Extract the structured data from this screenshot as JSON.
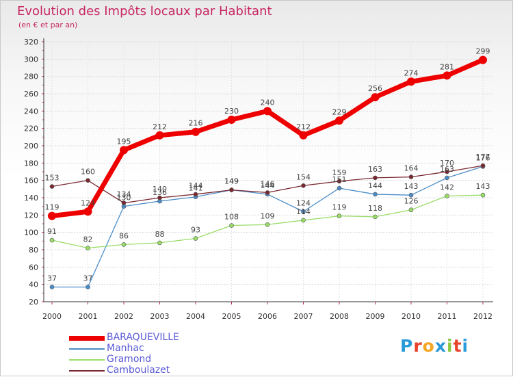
{
  "title": "Evolution des Impôts locaux par Habitant",
  "subtitle": "(en € et par an)",
  "logo": {
    "letters": [
      "P",
      "r",
      "o",
      "x",
      "i",
      "t",
      "i"
    ],
    "colors": [
      "#2a9ad8",
      "#e8432b",
      "#f5a623",
      "#2a9ad8",
      "#8cc63f",
      "#e8432b",
      "#2a9ad8"
    ]
  },
  "chart_data": {
    "type": "line",
    "title": "Evolution des Impôts locaux par Habitant",
    "subtitle": "(en € et par an)",
    "categories": [
      "2000",
      "2001",
      "2002",
      "2003",
      "2004",
      "2005",
      "2006",
      "2007",
      "2008",
      "2009",
      "2010",
      "2011",
      "2012"
    ],
    "ylim": [
      20,
      320
    ],
    "yticks": [
      20,
      40,
      60,
      80,
      100,
      120,
      140,
      160,
      180,
      200,
      220,
      240,
      260,
      280,
      300,
      320
    ],
    "grid": true,
    "legend_position": "bottom-left",
    "series": [
      {
        "name": "BARAQUEVILLE",
        "color": "#ee0000",
        "width": 7,
        "values": [
          119,
          124,
          195,
          212,
          216,
          230,
          240,
          212,
          229,
          256,
          274,
          281,
          299
        ]
      },
      {
        "name": "Manhac",
        "color": "#4a8cc8",
        "width": 1.3,
        "values": [
          37,
          37,
          130,
          136,
          141,
          149,
          144,
          124,
          151,
          144,
          143,
          163,
          176
        ]
      },
      {
        "name": "Gramond",
        "color": "#99dd66",
        "width": 1.3,
        "values": [
          91,
          82,
          86,
          88,
          93,
          108,
          109,
          114,
          119,
          118,
          126,
          142,
          143
        ]
      },
      {
        "name": "Camboulazet",
        "color": "#7a2830",
        "width": 1.3,
        "values": [
          153,
          160,
          134,
          140,
          144,
          149,
          146,
          154,
          159,
          163,
          164,
          170,
          177
        ]
      }
    ]
  }
}
